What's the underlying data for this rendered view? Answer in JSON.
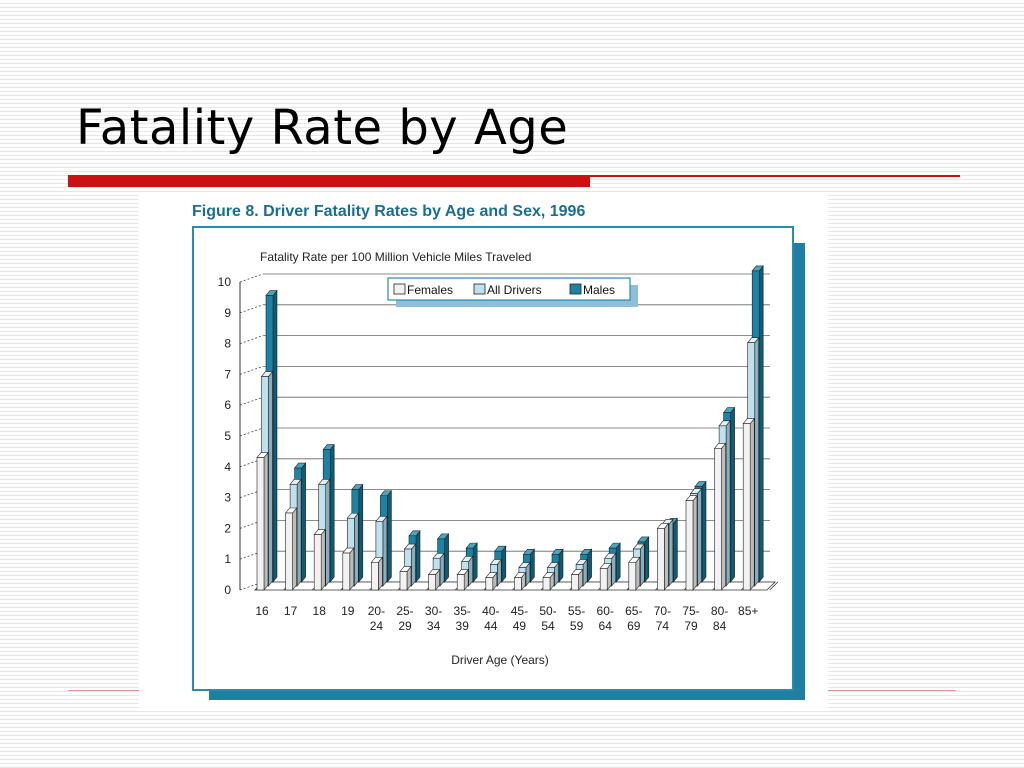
{
  "slide": {
    "title": "Fatality Rate by Age"
  },
  "colors": {
    "accent": "#cc1111",
    "frame": "#2a8ab0",
    "females": "#f2f2f2",
    "all_drivers": "#bfe0ec",
    "males": "#1b84a6"
  },
  "chart_data": {
    "type": "bar",
    "title": "Figure 8. Driver Fatality Rates by Age and Sex, 1996",
    "ylabel": "Fatality Rate per 100 Million Vehicle Miles Traveled",
    "xlabel": "Driver Age (Years)",
    "ylim": [
      0,
      10
    ],
    "yticks": [
      "0",
      "1",
      "2",
      "3",
      "4",
      "5",
      "6",
      "7",
      "8",
      "9",
      "10"
    ],
    "categories": [
      [
        "16"
      ],
      [
        "17"
      ],
      [
        "18"
      ],
      [
        "19"
      ],
      [
        "20-",
        "24"
      ],
      [
        "25-",
        "29"
      ],
      [
        "30-",
        "34"
      ],
      [
        "35-",
        "39"
      ],
      [
        "40-",
        "44"
      ],
      [
        "45-",
        "49"
      ],
      [
        "50-",
        "54"
      ],
      [
        "55-",
        "59"
      ],
      [
        "60-",
        "64"
      ],
      [
        "65-",
        "69"
      ],
      [
        "70-",
        "74"
      ],
      [
        "75-",
        "79"
      ],
      [
        "80-",
        "84"
      ],
      [
        "85+"
      ]
    ],
    "series": [
      {
        "name": "Females",
        "values": [
          4.3,
          2.5,
          1.8,
          1.2,
          0.9,
          0.6,
          0.5,
          0.5,
          0.4,
          0.4,
          0.4,
          0.5,
          0.7,
          0.9,
          2.0,
          2.9,
          4.6,
          5.4
        ]
      },
      {
        "name": "All Drivers",
        "values": [
          6.8,
          3.3,
          3.3,
          2.2,
          2.1,
          1.2,
          0.9,
          0.8,
          0.7,
          0.6,
          0.6,
          0.7,
          0.9,
          1.2,
          2.0,
          3.0,
          5.2,
          7.9
        ]
      },
      {
        "name": "Males",
        "values": [
          9.3,
          3.7,
          4.3,
          3.0,
          2.8,
          1.5,
          1.4,
          1.1,
          1.0,
          0.9,
          0.9,
          0.9,
          1.1,
          1.3,
          1.9,
          3.1,
          5.5,
          10.1
        ]
      }
    ],
    "legend_position": "top-center",
    "grid": true
  }
}
